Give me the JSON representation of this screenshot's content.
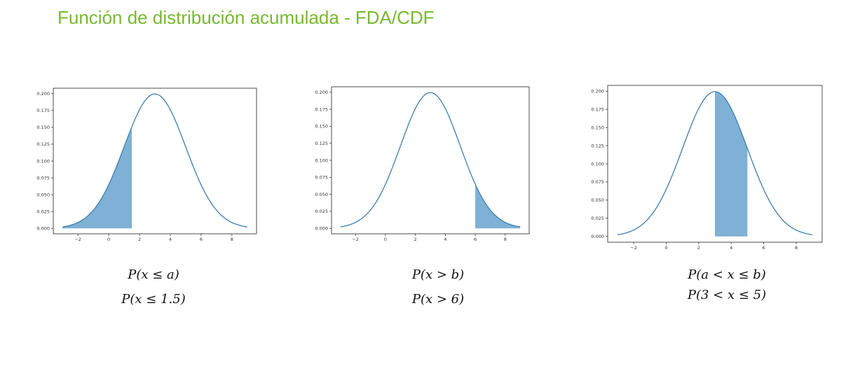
{
  "page_title": "Función de distribución acumulada - FDA/CDF",
  "formulas": [
    {
      "generic": "P(x ≤ a)",
      "example": "P(x ≤ 1.5)"
    },
    {
      "generic": "P(x > b)",
      "example": "P(x > 6)"
    },
    {
      "generic": "P(a < x ≤ b)",
      "example": "P(3 < x ≤ 5)"
    }
  ],
  "colors": {
    "title": "#78b830",
    "curve": "#3c7db0",
    "fill": "#7fb1d6",
    "axis": "#222222"
  },
  "chart_data": [
    {
      "type": "area",
      "distribution": {
        "mean": 3,
        "sd": 2
      },
      "x_range": [
        -3,
        9
      ],
      "xlim": [
        -3.6,
        9.6
      ],
      "ylim": [
        -0.008,
        0.208
      ],
      "x_ticks": [
        -2,
        0,
        2,
        4,
        6,
        8
      ],
      "x_tick_labels": [
        "−2",
        "0",
        "2",
        "4",
        "6",
        "8"
      ],
      "y_ticks": [
        0.0,
        0.025,
        0.05,
        0.075,
        0.1,
        0.125,
        0.15,
        0.175,
        0.2
      ],
      "y_tick_labels": [
        "0.000",
        "0.025",
        "0.050",
        "0.075",
        "0.100",
        "0.125",
        "0.150",
        "0.175",
        "0.200"
      ],
      "shaded_range": [
        -3,
        1.5
      ],
      "shade_style": "under-curve",
      "grid": false,
      "title": "",
      "xlabel": "",
      "ylabel": ""
    },
    {
      "type": "area",
      "distribution": {
        "mean": 3,
        "sd": 2
      },
      "x_range": [
        -3,
        9
      ],
      "xlim": [
        -3.6,
        9.6
      ],
      "ylim": [
        -0.008,
        0.208
      ],
      "x_ticks": [
        -2,
        0,
        2,
        4,
        6,
        8
      ],
      "x_tick_labels": [
        "−2",
        "0",
        "2",
        "4",
        "6",
        "8"
      ],
      "y_ticks": [
        0.0,
        0.025,
        0.05,
        0.075,
        0.1,
        0.125,
        0.15,
        0.175,
        0.2
      ],
      "y_tick_labels": [
        "0.000",
        "0.025",
        "0.050",
        "0.075",
        "0.100",
        "0.125",
        "0.150",
        "0.175",
        "0.200"
      ],
      "shaded_range": [
        6,
        9
      ],
      "shade_style": "under-curve",
      "grid": false,
      "title": "",
      "xlabel": "",
      "ylabel": ""
    },
    {
      "type": "area",
      "distribution": {
        "mean": 3,
        "sd": 2
      },
      "x_range": [
        -3,
        9
      ],
      "xlim": [
        -3.6,
        9.6
      ],
      "ylim": [
        -0.008,
        0.208
      ],
      "x_ticks": [
        -2,
        0,
        2,
        4,
        6,
        8
      ],
      "x_tick_labels": [
        "−2",
        "0",
        "2",
        "4",
        "6",
        "8"
      ],
      "y_ticks": [
        0.0,
        0.025,
        0.05,
        0.075,
        0.1,
        0.125,
        0.15,
        0.175,
        0.2
      ],
      "y_tick_labels": [
        "0.000",
        "0.025",
        "0.050",
        "0.075",
        "0.100",
        "0.125",
        "0.150",
        "0.175",
        "0.200"
      ],
      "shaded_range": [
        3,
        5
      ],
      "shade_style": "bar-to-peak",
      "grid": false,
      "title": "",
      "xlabel": "",
      "ylabel": ""
    }
  ]
}
